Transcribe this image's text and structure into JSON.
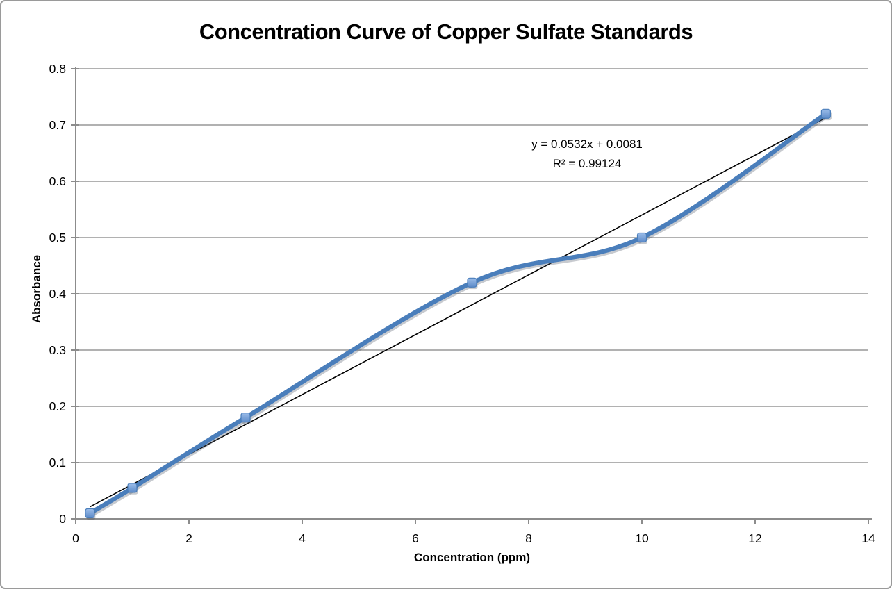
{
  "window": {
    "background": "#ffffff",
    "border_color": "#9a9a9a"
  },
  "chart_data": {
    "type": "line",
    "title": "Concentration Curve of Copper Sulfate Standards",
    "xlabel": "Concentration (ppm)",
    "ylabel": "Absorbance",
    "xlim": [
      0,
      14
    ],
    "ylim": [
      0,
      0.8
    ],
    "x_ticks": [
      0,
      2,
      4,
      6,
      8,
      10,
      12,
      14
    ],
    "x_tick_labels": [
      "0",
      "2",
      "4",
      "6",
      "8",
      "10",
      "12",
      "14"
    ],
    "y_ticks": [
      0,
      0.1,
      0.2,
      0.3,
      0.4,
      0.5,
      0.6,
      0.7,
      0.8
    ],
    "y_tick_labels": [
      "0",
      "0.1",
      "0.2",
      "0.3",
      "0.4",
      "0.5",
      "0.6",
      "0.7",
      "0.8"
    ],
    "grid": "horizontal",
    "legend": "none",
    "series": [
      {
        "style": "smoothed line with square markers",
        "color": "#4a7ebb",
        "marker_fill_top": "#9cbde9",
        "marker_fill_bottom": "#5d8bc9",
        "marker_stroke": "#4a7ebb",
        "x": [
          0.25,
          1,
          3,
          7,
          10,
          13.25
        ],
        "y": [
          0.01,
          0.055,
          0.18,
          0.42,
          0.5,
          0.72
        ]
      }
    ],
    "trendline": {
      "type": "linear",
      "color": "#000000",
      "slope": 0.0532,
      "intercept": 0.0081,
      "x_start": 0.25,
      "x_end": 13.25,
      "equation_label": "y = 0.0532x + 0.0081",
      "r_squared_label": "R² = 0.99124"
    },
    "axis_color": "#8c8c8c",
    "gridline_color": "#a6a6a6",
    "text_color": "#000000"
  }
}
